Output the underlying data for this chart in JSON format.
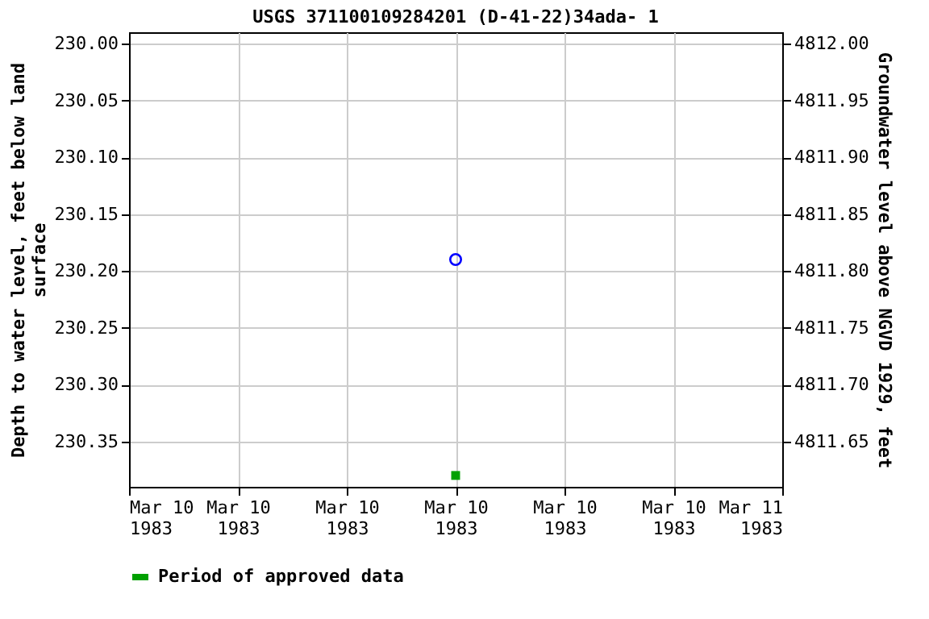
{
  "chart_data": {
    "type": "scatter",
    "title": "USGS 371100109284201  (D-41-22)34ada- 1",
    "ylabel": "Depth to water level, feet below land\nsurface",
    "y2label": "Groundwater level above NGVD 1929, feet",
    "x": [
      "1983-03-10T12:00"
    ],
    "series": [
      {
        "color": "#0000ff",
        "values": [
          230.19
        ],
        "marker": "circle"
      },
      {
        "name": "Period of approved data",
        "color": "#00a000",
        "values": [
          230.38
        ],
        "marker": "square"
      }
    ],
    "xlim": [
      "1983-03-10T00:00",
      "1983-03-11T00:00"
    ],
    "xticks": [
      {
        "value": "1983-03-10T00:00",
        "label": "Mar 10\n1983"
      },
      {
        "value": "1983-03-10T04:00",
        "label": "Mar 10\n1983"
      },
      {
        "value": "1983-03-10T08:00",
        "label": "Mar 10\n1983"
      },
      {
        "value": "1983-03-10T12:00",
        "label": "Mar 10\n1983"
      },
      {
        "value": "1983-03-10T16:00",
        "label": "Mar 10\n1983"
      },
      {
        "value": "1983-03-10T20:00",
        "label": "Mar 10\n1983"
      },
      {
        "value": "1983-03-11T00:00",
        "label": "Mar 11\n1983"
      }
    ],
    "ylim": [
      230.39,
      229.99
    ],
    "yticks": [
      {
        "value": 230.0,
        "label": "230.00"
      },
      {
        "value": 230.05,
        "label": "230.05"
      },
      {
        "value": 230.1,
        "label": "230.10"
      },
      {
        "value": 230.15,
        "label": "230.15"
      },
      {
        "value": 230.2,
        "label": "230.20"
      },
      {
        "value": 230.25,
        "label": "230.25"
      },
      {
        "value": 230.3,
        "label": "230.30"
      },
      {
        "value": 230.35,
        "label": "230.35"
      }
    ],
    "y2lim": [
      4811.61,
      4812.01
    ],
    "y2ticks": [
      {
        "value": 4811.65,
        "label": "4811.65"
      },
      {
        "value": 4811.7,
        "label": "4811.70"
      },
      {
        "value": 4811.75,
        "label": "4811.75"
      },
      {
        "value": 4811.8,
        "label": "4811.80"
      },
      {
        "value": 4811.85,
        "label": "4811.85"
      },
      {
        "value": 4811.9,
        "label": "4811.90"
      },
      {
        "value": 4811.95,
        "label": "4811.95"
      },
      {
        "value": 4812.0,
        "label": "4812.00"
      }
    ],
    "grid": true,
    "legend": "bottom"
  }
}
